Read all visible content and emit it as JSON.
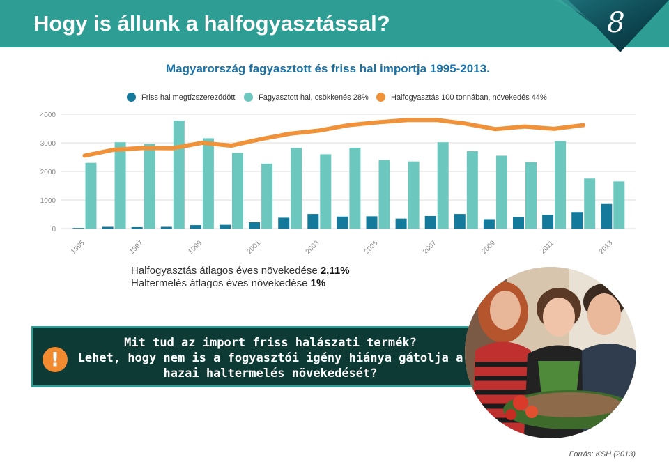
{
  "header": {
    "title": "Hogy is állunk a halfogyasztással?",
    "page_number": "8"
  },
  "chart_title": "Magyarország fagyasztott és friss hal importja 1995-2013.",
  "stats": {
    "line1_prefix": "Halfogyasztás átlagos éves növekedése ",
    "line1_value": "2,11%",
    "line2_prefix": "Haltermelés átlagos  éves növekedése ",
    "line2_value": "1%"
  },
  "callout": {
    "icon": "!",
    "line1": "Mit tud az import friss halászati termék?",
    "line2": "Lehet, hogy nem is a fogyasztói igény hiánya gátolja a",
    "line3": "hazai haltermelés növekedését?"
  },
  "source": "Forrás: KSH (2013)",
  "colors": {
    "header": "#2e9d93",
    "fresh": "#137a9c",
    "frozen": "#6cc8bf",
    "consumption": "#f0923a",
    "callout_bg": "#0e3a36",
    "title": "#1a73a8"
  },
  "chart_data": {
    "type": "bar",
    "categories": [
      "1995",
      "1996",
      "1997",
      "1998",
      "1999",
      "2000",
      "2001",
      "2002",
      "2003",
      "2004",
      "2005",
      "2006",
      "2007",
      "2008",
      "2009",
      "2010",
      "2011",
      "2012",
      "2013"
    ],
    "x_tick_labels": [
      "1995",
      "1997",
      "1999",
      "2001",
      "2003",
      "2005",
      "2007",
      "2009",
      "2011",
      "2013"
    ],
    "series": [
      {
        "name": "Friss hal megtízszereződött",
        "type": "bar",
        "color": "#137a9c",
        "values": [
          20,
          60,
          50,
          60,
          120,
          130,
          220,
          380,
          510,
          420,
          430,
          350,
          440,
          510,
          330,
          400,
          480,
          580,
          860
        ]
      },
      {
        "name": "Fagyasztott hal, csökkenés 28%",
        "type": "bar",
        "color": "#6cc8bf",
        "values": [
          2300,
          3020,
          2960,
          3780,
          3160,
          2650,
          2270,
          2820,
          2600,
          2830,
          2400,
          2350,
          3020,
          2710,
          2550,
          2330,
          3060,
          1750,
          1650
        ]
      },
      {
        "name": "Halfogyasztás 100 tonnában, növekedés 44%",
        "type": "line",
        "color": "#f0923a",
        "values": [
          2550,
          2760,
          2820,
          2810,
          3000,
          2900,
          3130,
          3320,
          3430,
          3620,
          3720,
          3800,
          3800,
          3670,
          3480,
          3570,
          3490,
          3620,
          null
        ]
      }
    ],
    "ylim": [
      0,
      4000
    ],
    "yticks": [
      0,
      1000,
      2000,
      3000,
      4000
    ],
    "grid": true,
    "legend_position": "top"
  }
}
